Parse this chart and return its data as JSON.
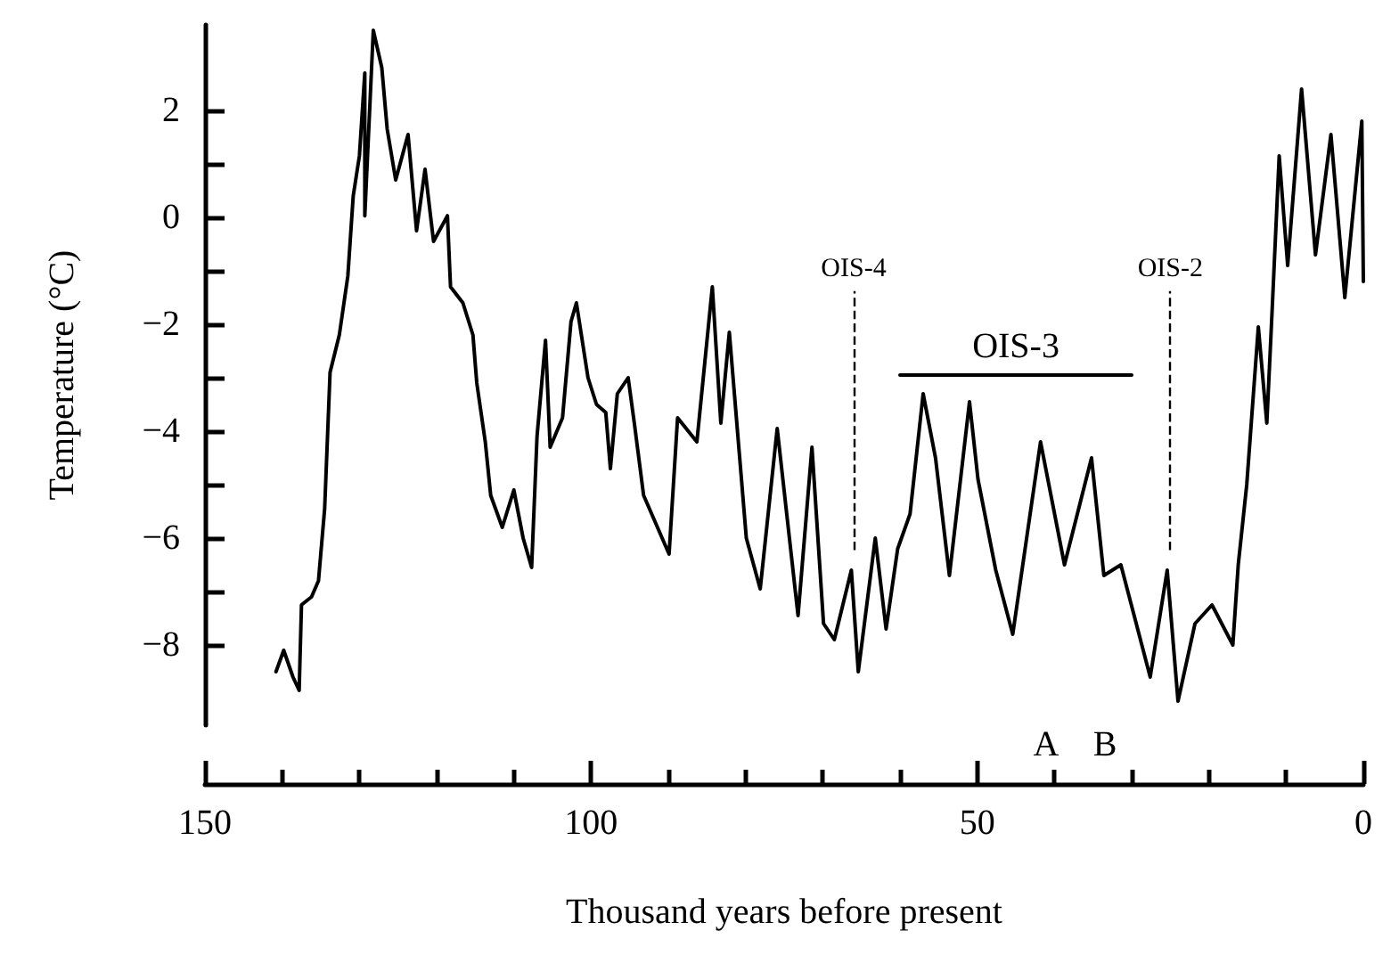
{
  "chart_data": {
    "type": "line",
    "xlabel": "Thousand years before present",
    "ylabel": "Temperature (°C)",
    "xlim": [
      150,
      0
    ],
    "xticks": [
      150,
      100,
      50,
      0
    ],
    "ylim": [
      -9.5,
      3.6
    ],
    "yticks": [
      -8,
      {
        "value": -7,
        "label": null
      },
      -6,
      {
        "value": -5,
        "label": null
      },
      -4,
      {
        "value": -3,
        "label": null
      },
      -2,
      {
        "value": -1,
        "label": null
      },
      0,
      {
        "value": 1,
        "label": null
      },
      2
    ],
    "grid": false,
    "legend": false,
    "marker": "none",
    "line_style": "solid",
    "series": [
      {
        "color": "#000000",
        "x": [
          140.8,
          139.8,
          138.6,
          137.8,
          137.5,
          136.2,
          135.3,
          134.5,
          133.8,
          132.6,
          131.5,
          130.8,
          130,
          129.3,
          129.3,
          128.2,
          127.1,
          126.4,
          125.3,
          123.7,
          122.6,
          121.5,
          120.4,
          118.6,
          118.2,
          116.6,
          115.3,
          114.8,
          113.7,
          113,
          111.5,
          110,
          108.8,
          107.7,
          107,
          105.9,
          105.3,
          103.7,
          102.6,
          101.9,
          100.4,
          99.3,
          98.1,
          97.5,
          96.6,
          95.2,
          94.4,
          93.2,
          89.9,
          88.8,
          86.3,
          84.3,
          83.2,
          82.1,
          79.9,
          78.1,
          75.9,
          73.2,
          71.4,
          69.9,
          68.5,
          66.3,
          65.4,
          63.2,
          61.8,
          60.3,
          58.7,
          57,
          55.4,
          53.6,
          51,
          49.9,
          47.6,
          45.4,
          41.8,
          38.7,
          35.2,
          33.6,
          31.4,
          27.6,
          25.4,
          24,
          21.8,
          19.6,
          16.9,
          16.2,
          15.1,
          13.6,
          12.5,
          11.8,
          10.9,
          9.8,
          8,
          6.2,
          4.2,
          2.4,
          0.2,
          0
        ],
        "values": [
          -8.5,
          -8.1,
          -8.6,
          -8.85,
          -7.25,
          -7.1,
          -6.8,
          -5.45,
          -2.9,
          -2.2,
          -1.1,
          0.4,
          1.15,
          2.7,
          0.03,
          3.5,
          2.8,
          1.65,
          0.7,
          1.55,
          -0.25,
          0.9,
          -0.45,
          0.03,
          -1.3,
          -1.6,
          -2.2,
          -3.1,
          -4.2,
          -5.2,
          -5.8,
          -5.1,
          -6.0,
          -6.55,
          -4.1,
          -2.3,
          -4.3,
          -3.75,
          -1.95,
          -1.6,
          -3.0,
          -3.5,
          -3.65,
          -4.7,
          -3.3,
          -3.0,
          -3.85,
          -5.2,
          -6.3,
          -3.75,
          -4.2,
          -1.3,
          -3.85,
          -2.15,
          -6.0,
          -6.95,
          -3.95,
          -7.45,
          -4.3,
          -7.6,
          -7.9,
          -6.6,
          -8.5,
          -6.0,
          -7.7,
          -6.2,
          -5.55,
          -3.3,
          -4.5,
          -6.7,
          -3.45,
          -4.9,
          -6.6,
          -7.8,
          -4.2,
          -6.5,
          -4.5,
          -6.7,
          -6.5,
          -8.6,
          -6.6,
          -9.05,
          -7.6,
          -7.25,
          -8.0,
          -6.5,
          -5.0,
          -2.05,
          -3.85,
          -1.7,
          1.15,
          -0.9,
          2.4,
          -0.7,
          1.55,
          -1.5,
          1.8,
          -1.2
        ]
      },
      {
        "name": "OIS-3",
        "color": "#000000",
        "x": [
          60,
          45,
          30
        ],
        "values": [
          -2.95,
          -2.95,
          -2.95
        ]
      }
    ],
    "ref_lines": [
      {
        "axis": "x",
        "value": 66,
        "label": "OIS-4",
        "line_style": "dashed"
      },
      {
        "axis": "x",
        "value": 25,
        "label": "OIS-2",
        "line_style": "dashed"
      }
    ],
    "annotations": [
      "A",
      "B"
    ]
  }
}
